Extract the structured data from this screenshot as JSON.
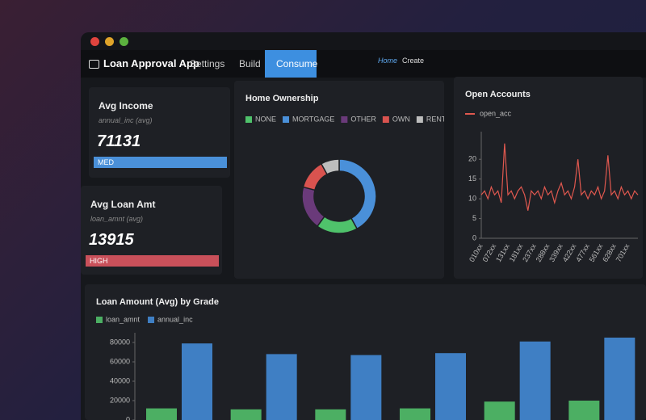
{
  "app": {
    "title": "Loan Approval App",
    "nav": [
      "Settings",
      "Build",
      "Consume"
    ],
    "links": [
      "Home",
      "Create"
    ]
  },
  "kpis": [
    {
      "title": "Avg Income",
      "subtitle": "annual_inc (avg)",
      "value": 71131,
      "badge": "MED",
      "color": "#4a90d9"
    },
    {
      "title": "Avg Loan Amt",
      "subtitle": "loan_amnt (avg)",
      "value": 13915,
      "badge": "HIGH",
      "color": "#c9505a"
    }
  ],
  "ownership": {
    "type": "pie",
    "title": "Home Ownership",
    "categories": [
      "NONE",
      "MORTGAGE",
      "OTHER",
      "OWN",
      "RENT"
    ],
    "values": [
      18,
      42,
      19,
      13,
      8
    ],
    "colors": [
      "#4fc26b",
      "#4a90d9",
      "#6a3a7a",
      "#d9534f",
      "#bdbdbd"
    ]
  },
  "accounts": {
    "type": "line",
    "title": "Open Accounts",
    "categories": [
      "010xx",
      null,
      null,
      null,
      "072xx",
      null,
      null,
      null,
      "131xx",
      null,
      null,
      null,
      "181xx",
      null,
      null,
      null,
      "237xx",
      null,
      null,
      null,
      "288xx",
      null,
      null,
      null,
      "339xx",
      null,
      null,
      null,
      "422xx",
      null,
      null,
      null,
      "477xx",
      null,
      null,
      null,
      "561xx",
      null,
      null,
      null,
      "628xx",
      null,
      null,
      null,
      "701xx",
      null,
      null,
      null
    ],
    "series": [
      {
        "name": "open_acc",
        "color": "#e0584f",
        "values": [
          11,
          12,
          10,
          13,
          11,
          12,
          9,
          24,
          11,
          12,
          10,
          12,
          13,
          11,
          7,
          12,
          11,
          12,
          10,
          13,
          11,
          12,
          9,
          12,
          14,
          11,
          12,
          10,
          13,
          20,
          11,
          12,
          10,
          12,
          11,
          13,
          10,
          12,
          21,
          11,
          12,
          10,
          13,
          11,
          12,
          10,
          12,
          11
        ]
      }
    ],
    "ylim": [
      0,
      27
    ],
    "yticks": [
      0,
      5,
      10,
      15,
      20
    ]
  },
  "grades": {
    "type": "bar",
    "title": "Loan Amount (Avg) by Grade",
    "categories": [
      null,
      null,
      null,
      null,
      null,
      null
    ],
    "series": [
      {
        "name": "loan_amnt",
        "color": "#4caf63",
        "values": [
          12000,
          11000,
          11000,
          12000,
          19000,
          20000
        ]
      },
      {
        "name": "annual_inc",
        "color": "#3f7fc4",
        "values": [
          79000,
          68000,
          67000,
          69000,
          81000,
          85000
        ]
      }
    ],
    "ylim": [
      0,
      90000
    ],
    "yticks": [
      0,
      20000,
      40000,
      60000,
      80000
    ]
  }
}
